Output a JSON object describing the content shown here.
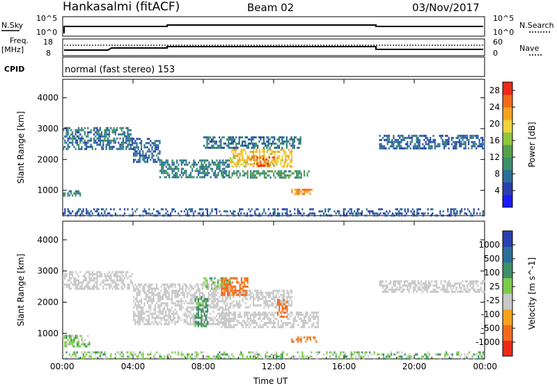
{
  "header": {
    "station": "Hankasalmi (fitACF)",
    "beam": "Beam 02",
    "date": "03/Nov/2017"
  },
  "top_panels": {
    "nsky_label": "N.Sky",
    "nsky_ticks": [
      "10^5",
      "10^0"
    ],
    "nsearch_label": "N.Search",
    "nsearch_ticks": [
      "10^5",
      "10^0"
    ],
    "freq_label": "Freq.",
    "freq_unit": "[MHz]",
    "freq_ticks": [
      "18",
      "8"
    ],
    "nave_label": "Nave",
    "nave_ticks": [
      "60",
      "0"
    ],
    "cpid_label": "CPID",
    "cpid_text": "normal (fast stereo) 153"
  },
  "chart_data": [
    {
      "type": "heatmap",
      "panel": "power",
      "ylabel": "Slant Range [km]",
      "ylim": [
        180,
        4600
      ],
      "yticks": [
        "4000",
        "3000",
        "2000",
        "1000"
      ],
      "xlim": [
        0,
        24
      ],
      "xticks": [
        "00:00",
        "04:00",
        "08:00",
        "12:00",
        "16:00",
        "20:00",
        "00:00"
      ],
      "xlabel": "Time UT",
      "colorbar": {
        "label": "Power [dB]",
        "ticks": [
          "4",
          "8",
          "12",
          "16",
          "20",
          "24",
          "28"
        ],
        "range": [
          0,
          30
        ],
        "colors": [
          "#1a1aff",
          "#2a3fb0",
          "#2c6e9a",
          "#3f8f6a",
          "#55a14a",
          "#8ec63f",
          "#f0d33a",
          "#f6a21e",
          "#f36b1a",
          "#ec2a18"
        ]
      },
      "regions": [
        {
          "t": [
            0.0,
            4.0
          ],
          "r": [
            2350,
            3050
          ],
          "level": 8
        },
        {
          "t": [
            4.0,
            5.5
          ],
          "r": [
            1900,
            2700
          ],
          "level": 7
        },
        {
          "t": [
            5.5,
            9.5
          ],
          "r": [
            1450,
            2000
          ],
          "level": 9
        },
        {
          "t": [
            9.0,
            14.0
          ],
          "r": [
            1400,
            1650
          ],
          "level": 11
        },
        {
          "t": [
            9.5,
            13.0
          ],
          "r": [
            1750,
            2350
          ],
          "level": 20
        },
        {
          "t": [
            10.5,
            12.0
          ],
          "r": [
            1800,
            2100
          ],
          "level": 26
        },
        {
          "t": [
            13.0,
            14.2
          ],
          "r": [
            850,
            1050
          ],
          "level": 24
        },
        {
          "t": [
            8.0,
            13.5
          ],
          "r": [
            2350,
            2750
          ],
          "level": 8
        },
        {
          "t": [
            0.0,
            1.0
          ],
          "r": [
            800,
            1000
          ],
          "level": 9
        },
        {
          "t": [
            18.0,
            24.0
          ],
          "r": [
            2350,
            2800
          ],
          "level": 7
        },
        {
          "t": [
            0.0,
            24.0
          ],
          "r": [
            200,
            420
          ],
          "level": 6
        }
      ]
    },
    {
      "type": "heatmap",
      "panel": "velocity",
      "ylabel": "Slant Range [km]",
      "ylim": [
        180,
        4600
      ],
      "yticks": [
        "4000",
        "3000",
        "2000",
        "1000"
      ],
      "xlim": [
        0,
        24
      ],
      "xticks": [
        "00:00",
        "04:00",
        "08:00",
        "12:00",
        "16:00",
        "20:00",
        "00:00"
      ],
      "xlabel": "Time UT",
      "colorbar": {
        "label": "Velocity [m s^-1]",
        "ticks": [
          "1000",
          "500",
          "100",
          "25",
          "-25",
          "-100",
          "-500",
          "-1000"
        ],
        "colors": [
          "#2a3fb0",
          "#2c6e9a",
          "#3f8f6a",
          "#7ccc4a",
          "#c8c8c8",
          "#f6a21e",
          "#f36b1a",
          "#ec2a18"
        ]
      },
      "regions": [
        {
          "t": [
            0.0,
            4.0
          ],
          "r": [
            2400,
            3000
          ],
          "v": 0
        },
        {
          "t": [
            4.0,
            9.5
          ],
          "r": [
            1300,
            2600
          ],
          "v": 0
        },
        {
          "t": [
            9.0,
            14.5
          ],
          "r": [
            1200,
            1700
          ],
          "v": 0
        },
        {
          "t": [
            9.5,
            13.0
          ],
          "r": [
            1800,
            2400
          ],
          "v": 0
        },
        {
          "t": [
            8.0,
            9.5
          ],
          "r": [
            2400,
            2800
          ],
          "v": 60
        },
        {
          "t": [
            9.0,
            10.5
          ],
          "r": [
            2200,
            2800
          ],
          "v": -150
        },
        {
          "t": [
            12.2,
            12.8
          ],
          "r": [
            1500,
            2100
          ],
          "v": -400
        },
        {
          "t": [
            13.0,
            14.5
          ],
          "r": [
            700,
            900
          ],
          "v": -150
        },
        {
          "t": [
            0.0,
            1.5
          ],
          "r": [
            600,
            950
          ],
          "v": 60
        },
        {
          "t": [
            7.5,
            8.2
          ],
          "r": [
            1200,
            2200
          ],
          "v": 150
        },
        {
          "t": [
            18.0,
            24.0
          ],
          "r": [
            2350,
            2700
          ],
          "v": 0
        },
        {
          "t": [
            0.0,
            24.0
          ],
          "r": [
            200,
            420
          ],
          "v": 60
        }
      ]
    }
  ]
}
